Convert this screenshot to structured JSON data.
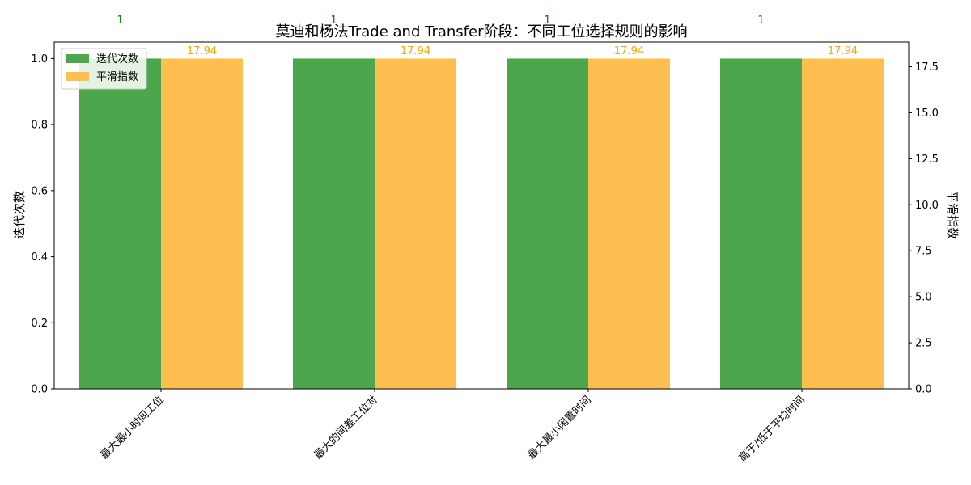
{
  "chart_data": {
    "type": "bar",
    "title": "莫迪和杨法Trade and Transfer阶段：不同工位选择规则的影响",
    "categories": [
      "最大最小时间工位",
      "最大的间差工位对",
      "最大最小闲置时间",
      "高于/低于平均时间"
    ],
    "series": [
      {
        "name": "迭代次数",
        "axis": "left",
        "values": [
          1,
          1,
          1,
          1
        ],
        "labels": [
          "1",
          "1",
          "1",
          "1"
        ],
        "color": "#4ca64c",
        "label_color": "#008000"
      },
      {
        "name": "平滑指数",
        "axis": "right",
        "values": [
          17.94,
          17.94,
          17.94,
          17.94
        ],
        "labels": [
          "17.94",
          "17.94",
          "17.94",
          "17.94"
        ],
        "color": "#fdbf4f",
        "label_color": "#ffa500"
      }
    ],
    "ylabel": "迭代次数",
    "y2label": "平滑指数",
    "ylim": [
      0,
      1.05
    ],
    "y2lim": [
      0,
      18.84
    ],
    "yticks": [
      "0.0",
      "0.2",
      "0.4",
      "0.6",
      "0.8",
      "1.0"
    ],
    "y2ticks": [
      "0.0",
      "2.5",
      "5.0",
      "7.5",
      "10.0",
      "12.5",
      "15.0",
      "17.5"
    ],
    "legend": "top-left",
    "grid": false
  }
}
